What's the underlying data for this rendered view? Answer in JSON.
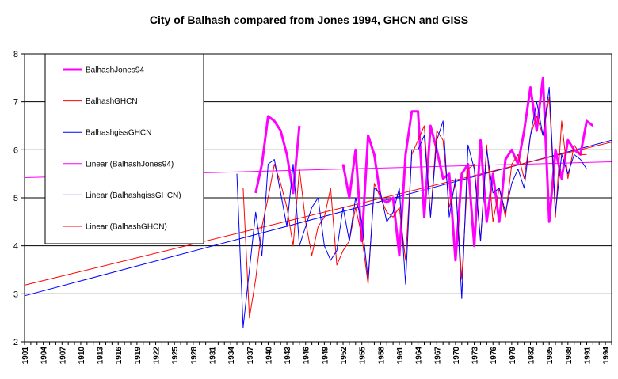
{
  "chart_data": {
    "type": "line",
    "title": "City of Balhash compared from Jones 1994, GHCN and GISS",
    "xlabel": "",
    "ylabel": "",
    "xlim": [
      1901,
      1995
    ],
    "ylim": [
      2,
      8
    ],
    "yticks": [
      2,
      3,
      4,
      5,
      6,
      7,
      8
    ],
    "xticks": [
      1901,
      1904,
      1907,
      1910,
      1913,
      1916,
      1919,
      1922,
      1925,
      1928,
      1931,
      1934,
      1937,
      1940,
      1943,
      1946,
      1949,
      1952,
      1955,
      1958,
      1961,
      1964,
      1967,
      1970,
      1973,
      1976,
      1979,
      1982,
      1985,
      1988,
      1991,
      1994
    ],
    "grid": "horizontal",
    "legend_position": "top-left",
    "series": [
      {
        "name": "BalhashJones94",
        "color": "#ff00ff",
        "width": 3,
        "points": [
          [
            1938,
            5.1
          ],
          [
            1939,
            5.7
          ],
          [
            1940,
            6.7
          ],
          [
            1941,
            6.6
          ],
          [
            1942,
            6.4
          ],
          [
            1943,
            5.9
          ],
          [
            1944,
            5.1
          ],
          [
            1945,
            6.5
          ],
          [
            1952,
            5.7
          ],
          [
            1953,
            5.0
          ],
          [
            1954,
            6.0
          ],
          [
            1955,
            4.1
          ],
          [
            1956,
            6.3
          ],
          [
            1957,
            5.9
          ],
          [
            1958,
            5.0
          ],
          [
            1959,
            4.9
          ],
          [
            1960,
            5.0
          ],
          [
            1961,
            3.8
          ],
          [
            1962,
            5.9
          ],
          [
            1963,
            6.8
          ],
          [
            1964,
            6.8
          ],
          [
            1965,
            4.6
          ],
          [
            1966,
            6.5
          ],
          [
            1967,
            6.0
          ],
          [
            1968,
            5.4
          ],
          [
            1969,
            5.5
          ],
          [
            1970,
            3.7
          ],
          [
            1971,
            5.5
          ],
          [
            1972,
            5.7
          ],
          [
            1973,
            4.0
          ],
          [
            1974,
            6.2
          ],
          [
            1975,
            4.5
          ],
          [
            1976,
            5.5
          ],
          [
            1977,
            4.5
          ],
          [
            1978,
            5.8
          ],
          [
            1979,
            6.0
          ],
          [
            1980,
            5.7
          ],
          [
            1981,
            6.4
          ],
          [
            1982,
            7.3
          ],
          [
            1983,
            6.4
          ],
          [
            1984,
            7.5
          ],
          [
            1985,
            4.5
          ],
          [
            1986,
            6.0
          ],
          [
            1987,
            5.4
          ],
          [
            1988,
            6.2
          ],
          [
            1989,
            6.0
          ],
          [
            1990,
            5.9
          ],
          [
            1991,
            6.6
          ],
          [
            1992,
            6.5
          ]
        ]
      },
      {
        "name": "BalhashGHCN",
        "color": "#ff0000",
        "width": 1,
        "points": [
          [
            1936,
            5.2
          ],
          [
            1937,
            2.5
          ],
          [
            1938,
            3.3
          ],
          [
            1939,
            4.4
          ],
          [
            1940,
            5.0
          ],
          [
            1941,
            5.7
          ],
          [
            1942,
            5.3
          ],
          [
            1943,
            4.8
          ],
          [
            1944,
            4.0
          ],
          [
            1945,
            5.6
          ],
          [
            1946,
            4.5
          ],
          [
            1947,
            3.8
          ],
          [
            1948,
            4.4
          ],
          [
            1949,
            4.6
          ],
          [
            1950,
            5.2
          ],
          [
            1951,
            3.6
          ],
          [
            1952,
            3.9
          ],
          [
            1953,
            4.1
          ],
          [
            1954,
            4.8
          ],
          [
            1955,
            4.2
          ],
          [
            1956,
            3.2
          ],
          [
            1957,
            5.3
          ],
          [
            1958,
            5.0
          ],
          [
            1959,
            4.7
          ],
          [
            1960,
            4.6
          ],
          [
            1961,
            4.8
          ],
          [
            1962,
            3.7
          ],
          [
            1963,
            5.9
          ],
          [
            1964,
            6.2
          ],
          [
            1965,
            6.5
          ],
          [
            1966,
            4.6
          ],
          [
            1967,
            6.4
          ],
          [
            1968,
            6.2
          ],
          [
            1969,
            4.8
          ],
          [
            1970,
            5.3
          ],
          [
            1971,
            3.3
          ],
          [
            1972,
            5.6
          ],
          [
            1973,
            5.7
          ],
          [
            1974,
            4.1
          ],
          [
            1975,
            6.1
          ],
          [
            1976,
            4.5
          ],
          [
            1977,
            5.2
          ],
          [
            1978,
            4.6
          ],
          [
            1979,
            5.7
          ],
          [
            1980,
            5.9
          ],
          [
            1981,
            5.4
          ],
          [
            1982,
            6.3
          ],
          [
            1983,
            6.7
          ],
          [
            1984,
            6.3
          ],
          [
            1985,
            7.1
          ],
          [
            1986,
            4.6
          ],
          [
            1987,
            6.6
          ],
          [
            1988,
            5.4
          ],
          [
            1989,
            6.1
          ],
          [
            1990,
            5.9
          ],
          [
            1991,
            5.9
          ]
        ]
      },
      {
        "name": "BalhashgissGHCN",
        "color": "#0000ff",
        "width": 1,
        "points": [
          [
            1935,
            5.5
          ],
          [
            1936,
            2.3
          ],
          [
            1937,
            3.5
          ],
          [
            1938,
            4.7
          ],
          [
            1939,
            3.8
          ],
          [
            1940,
            5.7
          ],
          [
            1941,
            5.8
          ],
          [
            1942,
            5.1
          ],
          [
            1943,
            4.4
          ],
          [
            1944,
            5.7
          ],
          [
            1945,
            4.0
          ],
          [
            1946,
            4.4
          ],
          [
            1947,
            4.8
          ],
          [
            1948,
            5.0
          ],
          [
            1949,
            4.0
          ],
          [
            1950,
            3.7
          ],
          [
            1951,
            3.9
          ],
          [
            1952,
            4.8
          ],
          [
            1953,
            4.1
          ],
          [
            1954,
            5.0
          ],
          [
            1955,
            4.5
          ],
          [
            1956,
            3.3
          ],
          [
            1957,
            5.2
          ],
          [
            1958,
            5.1
          ],
          [
            1959,
            4.5
          ],
          [
            1960,
            4.7
          ],
          [
            1961,
            5.2
          ],
          [
            1962,
            3.2
          ],
          [
            1963,
            6.0
          ],
          [
            1964,
            6.0
          ],
          [
            1965,
            6.3
          ],
          [
            1966,
            4.6
          ],
          [
            1967,
            6.2
          ],
          [
            1968,
            6.6
          ],
          [
            1969,
            4.6
          ],
          [
            1970,
            5.4
          ],
          [
            1971,
            2.9
          ],
          [
            1972,
            6.1
          ],
          [
            1973,
            5.6
          ],
          [
            1974,
            4.1
          ],
          [
            1975,
            6.0
          ],
          [
            1976,
            5.1
          ],
          [
            1977,
            5.2
          ],
          [
            1978,
            4.7
          ],
          [
            1979,
            5.3
          ],
          [
            1980,
            5.6
          ],
          [
            1981,
            5.2
          ],
          [
            1982,
            6.3
          ],
          [
            1983,
            7.0
          ],
          [
            1984,
            6.3
          ],
          [
            1985,
            7.3
          ],
          [
            1986,
            4.7
          ],
          [
            1987,
            5.9
          ],
          [
            1988,
            5.5
          ],
          [
            1989,
            5.9
          ],
          [
            1990,
            5.8
          ],
          [
            1991,
            5.6
          ]
        ]
      },
      {
        "name": "Linear (BalhashJones94)",
        "color": "#ff00ff",
        "width": 1,
        "points": [
          [
            1901,
            5.42
          ],
          [
            1995,
            5.75
          ]
        ]
      },
      {
        "name": "Linear (BalhashgissGHCN)",
        "color": "#0000ff",
        "width": 1,
        "points": [
          [
            1901,
            2.96
          ],
          [
            1995,
            6.2
          ]
        ]
      },
      {
        "name": "Linear (BalhashGHCN)",
        "color": "#ff0000",
        "width": 1,
        "points": [
          [
            1901,
            3.18
          ],
          [
            1995,
            6.16
          ]
        ]
      }
    ]
  }
}
